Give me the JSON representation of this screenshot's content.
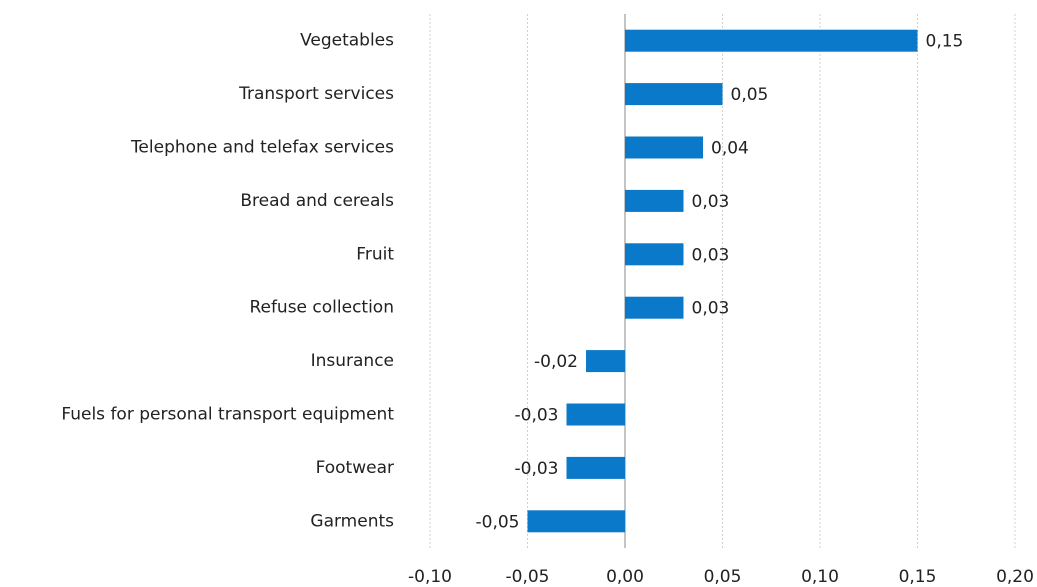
{
  "chart_data": {
    "type": "hbar",
    "categories": [
      "Vegetables",
      "Transport services",
      "Telephone and telefax services",
      "Bread and cereals",
      "Fruit",
      "Refuse collection",
      "Insurance",
      "Fuels for personal transport equipment",
      "Footwear",
      "Garments"
    ],
    "values": [
      0.15,
      0.05,
      0.04,
      0.03,
      0.03,
      0.03,
      -0.02,
      -0.03,
      -0.03,
      -0.05
    ],
    "value_labels": [
      "0,15",
      "0,05",
      "0,04",
      "0,03",
      "0,03",
      "0,03",
      "-0,02",
      "-0,03",
      "-0,03",
      "-0,05"
    ],
    "color": "#0a79c9",
    "xlim": [
      -0.1,
      0.2
    ],
    "xticks": [
      {
        "value": -0.1,
        "label": "-0,10"
      },
      {
        "value": -0.05,
        "label": "-0,05"
      },
      {
        "value": 0,
        "label": "0,00"
      },
      {
        "value": 0.05,
        "label": "0,05"
      },
      {
        "value": 0.1,
        "label": "0,10"
      },
      {
        "value": 0.15,
        "label": "0,15"
      },
      {
        "value": 0.2,
        "label": "0,20"
      }
    ],
    "grid": true
  }
}
